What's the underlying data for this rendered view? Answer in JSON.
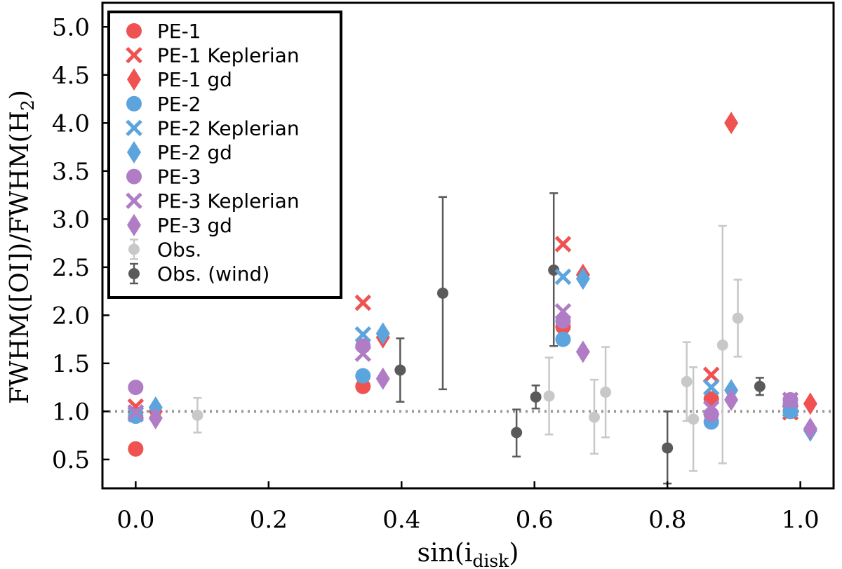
{
  "chart_data": {
    "type": "scatter",
    "title": "",
    "xlabel": "sin(i",
    "xlabel_sub": "disk",
    "xlabel_close": ")",
    "ylabel": "FWHM([OI])/FWHM(H",
    "ylabel_sub": "2",
    "ylabel_close": ")",
    "xlim": [
      -0.05,
      1.05
    ],
    "ylim": [
      0.2,
      5.25
    ],
    "xticks": [
      0.0,
      0.2,
      0.4,
      0.6,
      0.8,
      1.0
    ],
    "xtick_labels": [
      "0.0",
      "0.2",
      "0.4",
      "0.6",
      "0.8",
      "1.0"
    ],
    "yticks": [
      0.5,
      1.0,
      1.5,
      2.0,
      2.5,
      3.0,
      3.5,
      4.0,
      4.5,
      5.0
    ],
    "ytick_labels": [
      "0.5",
      "1.0",
      "1.5",
      "2.0",
      "2.5",
      "3.0",
      "3.5",
      "4.0",
      "4.5",
      "5.0"
    ],
    "reference_line": {
      "y": 1.0,
      "style": "dotted",
      "color": "#999999"
    },
    "legend_position": "top-left",
    "series": [
      {
        "name": "PE-1",
        "marker": "circle",
        "color": "#ef5250",
        "points": [
          [
            0.0,
            0.61
          ],
          [
            0.342,
            1.26
          ],
          [
            0.643,
            1.88
          ],
          [
            0.866,
            1.13
          ],
          [
            0.985,
            1.0
          ]
        ]
      },
      {
        "name": "PE-1 Keplerian",
        "marker": "x",
        "color": "#ef5250",
        "points": [
          [
            0.0,
            1.05
          ],
          [
            0.342,
            2.13
          ],
          [
            0.643,
            2.74
          ],
          [
            0.866,
            1.38
          ],
          [
            0.985,
            0.99
          ]
        ]
      },
      {
        "name": "PE-1 gd",
        "marker": "diamond",
        "color": "#ef5250",
        "points": [
          [
            0.03,
            1.0
          ],
          [
            0.372,
            1.77
          ],
          [
            0.673,
            2.42
          ],
          [
            0.896,
            4.0
          ],
          [
            1.015,
            1.08
          ]
        ]
      },
      {
        "name": "PE-2",
        "marker": "circle",
        "color": "#5ba4dd",
        "points": [
          [
            0.0,
            0.95
          ],
          [
            0.342,
            1.37
          ],
          [
            0.643,
            1.75
          ],
          [
            0.866,
            0.89
          ],
          [
            0.985,
            1.0
          ]
        ]
      },
      {
        "name": "PE-2 Keplerian",
        "marker": "x",
        "color": "#5ba4dd",
        "points": [
          [
            0.0,
            0.97
          ],
          [
            0.342,
            1.8
          ],
          [
            0.643,
            2.4
          ],
          [
            0.866,
            1.25
          ],
          [
            0.985,
            1.02
          ]
        ]
      },
      {
        "name": "PE-2 gd",
        "marker": "diamond",
        "color": "#5ba4dd",
        "points": [
          [
            0.03,
            1.04
          ],
          [
            0.372,
            1.81
          ],
          [
            0.673,
            2.38
          ],
          [
            0.896,
            1.22
          ],
          [
            1.015,
            0.8
          ]
        ]
      },
      {
        "name": "PE-3",
        "marker": "circle",
        "color": "#b07cc6",
        "points": [
          [
            0.0,
            1.25
          ],
          [
            0.342,
            1.68
          ],
          [
            0.643,
            1.94
          ],
          [
            0.866,
            0.97
          ],
          [
            0.985,
            1.12
          ]
        ]
      },
      {
        "name": "PE-3 Keplerian",
        "marker": "x",
        "color": "#b07cc6",
        "points": [
          [
            0.0,
            0.99
          ],
          [
            0.342,
            1.6
          ],
          [
            0.643,
            2.04
          ],
          [
            0.866,
            1.03
          ],
          [
            0.985,
            1.12
          ]
        ]
      },
      {
        "name": "PE-3 gd",
        "marker": "diamond",
        "color": "#b07cc6",
        "points": [
          [
            0.03,
            0.93
          ],
          [
            0.372,
            1.34
          ],
          [
            0.673,
            1.62
          ],
          [
            0.896,
            1.12
          ],
          [
            1.015,
            0.82
          ]
        ]
      },
      {
        "name": "Obs.",
        "marker": "errorbar",
        "color": "#c8c8c8",
        "points": [
          [
            0.093,
            0.96,
            0.78,
            1.14
          ],
          [
            0.622,
            1.16,
            0.76,
            1.56
          ],
          [
            0.69,
            0.94,
            0.56,
            1.33
          ],
          [
            0.707,
            1.2,
            0.73,
            1.67
          ],
          [
            0.829,
            1.31,
            0.9,
            1.72
          ],
          [
            0.839,
            0.92,
            0.38,
            1.46
          ],
          [
            0.883,
            1.69,
            0.46,
            2.93
          ],
          [
            0.906,
            1.97,
            1.57,
            2.37
          ]
        ]
      },
      {
        "name": "Obs. (wind)",
        "marker": "errorbar",
        "color": "#5a5a5a",
        "points": [
          [
            0.398,
            1.43,
            1.1,
            1.76
          ],
          [
            0.462,
            2.23,
            1.23,
            3.23
          ],
          [
            0.573,
            0.78,
            0.53,
            1.02
          ],
          [
            0.602,
            1.15,
            1.03,
            1.27
          ],
          [
            0.629,
            2.47,
            1.68,
            3.27
          ],
          [
            0.8,
            0.62,
            0.25,
            1.0
          ],
          [
            0.939,
            1.26,
            1.17,
            1.35
          ]
        ]
      }
    ]
  }
}
